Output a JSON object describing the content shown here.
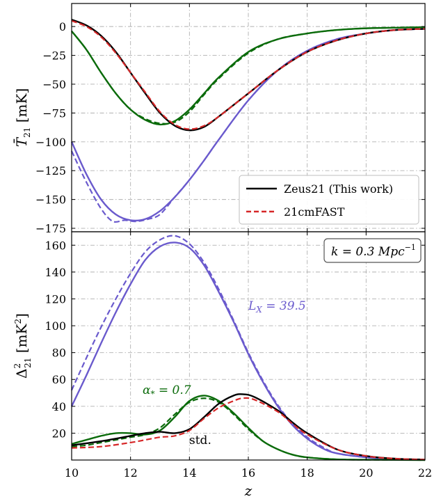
{
  "chart_data": [
    {
      "type": "line",
      "panel": "top",
      "ylabel": "T̄21 [mK]",
      "ylabel_main": "T̄",
      "ylabel_sub": "21",
      "ylabel_unit": " [mK]",
      "xlim": [
        10,
        22
      ],
      "ylim": [
        -178,
        20
      ],
      "x_ticks": [
        10,
        12,
        14,
        16,
        18,
        20,
        22
      ],
      "y_ticks": [
        0,
        -25,
        -50,
        -75,
        -100,
        -125,
        -150,
        -175
      ],
      "y_tick_labels": [
        "0",
        "−25",
        "−50",
        "−75",
        "−100",
        "−125",
        "−150",
        "−175"
      ],
      "grid": true,
      "legend_position": "lower-right",
      "legend": [
        {
          "label": "Zeus21 (This work)",
          "style": "solid",
          "color": "#000000"
        },
        {
          "label": "21cmFAST",
          "style": "dashed",
          "color": "#d62728"
        }
      ],
      "series": [
        {
          "name": "Zeus21 (This work)",
          "model": "std.",
          "style": "solid",
          "color": "#000000",
          "x": [
            10,
            10.5,
            11,
            11.5,
            12,
            12.5,
            13,
            13.5,
            14,
            14.5,
            15,
            16,
            17,
            18,
            19,
            20,
            21,
            22
          ],
          "y": [
            6,
            1,
            -8,
            -22,
            -40,
            -58,
            -75,
            -86,
            -90,
            -87,
            -78,
            -58,
            -38,
            -22,
            -12,
            -6,
            -3,
            -2
          ]
        },
        {
          "name": "21cmFAST",
          "model": "std.",
          "style": "dashed",
          "color": "#d62728",
          "x": [
            10,
            10.5,
            11,
            11.5,
            12,
            12.5,
            13,
            13.5,
            14,
            14.5,
            15,
            16,
            17,
            18,
            19,
            20,
            21,
            22
          ],
          "y": [
            5,
            0,
            -9,
            -23,
            -40,
            -57,
            -74,
            -85,
            -89,
            -86,
            -78,
            -58,
            -38,
            -22,
            -12,
            -6,
            -3,
            -2
          ]
        },
        {
          "model": "α* = 0.7",
          "style": "solid",
          "color": "#0b6b0b",
          "x": [
            10,
            10.5,
            11,
            11.5,
            12,
            12.5,
            13,
            13.5,
            14,
            14.5,
            15,
            16,
            17,
            18,
            19,
            20,
            21,
            22
          ],
          "y": [
            -4,
            -20,
            -40,
            -58,
            -72,
            -81,
            -85,
            -82,
            -72,
            -58,
            -44,
            -22,
            -11,
            -6,
            -3,
            -1.5,
            -1,
            -0.5
          ]
        },
        {
          "model": "α* = 0.7",
          "style": "dashed",
          "color": "#0b6b0b",
          "x": [
            10,
            10.5,
            11,
            11.5,
            12,
            12.5,
            13,
            13.5,
            14,
            14.5,
            15,
            16,
            17,
            18,
            19,
            20,
            21,
            22
          ],
          "y": [
            -4,
            -20,
            -40,
            -58,
            -72,
            -80,
            -84,
            -83,
            -74,
            -59,
            -45,
            -23,
            -11,
            -6,
            -3,
            -1.5,
            -1,
            -0.5
          ]
        },
        {
          "model": "LX = 39.5",
          "style": "solid",
          "color": "#6a5acd",
          "x": [
            10,
            10.5,
            11,
            11.5,
            12,
            12.5,
            13,
            13.5,
            14,
            14.5,
            15,
            16,
            17,
            18,
            19,
            20,
            21,
            22
          ],
          "y": [
            -100,
            -128,
            -150,
            -163,
            -168,
            -167,
            -160,
            -148,
            -133,
            -116,
            -98,
            -64,
            -38,
            -21,
            -11,
            -6,
            -3,
            -2
          ]
        },
        {
          "model": "LX = 39.5",
          "style": "dashed",
          "color": "#6a5acd",
          "x": [
            10,
            10.5,
            11,
            11.4,
            11.8,
            12.2,
            12.6,
            13,
            13.5,
            14,
            14.5,
            15,
            16,
            17,
            18,
            19,
            20,
            21,
            22
          ],
          "y": [
            -108,
            -135,
            -158,
            -169,
            -168,
            -169,
            -167,
            -163,
            -148,
            -133,
            -116,
            -98,
            -64,
            -38,
            -21,
            -11,
            -6,
            -3,
            -2
          ]
        }
      ]
    },
    {
      "type": "line",
      "panel": "bottom",
      "xlabel": "z",
      "ylabel": "Δ²21 [mK²]",
      "ylabel_main": "Δ",
      "ylabel_sup": "2",
      "ylabel_sub": "21",
      "ylabel_unit": " [mK",
      "ylabel_unit_sup": "2",
      "ylabel_close": "]",
      "xlim": [
        10,
        22
      ],
      "ylim": [
        0,
        170
      ],
      "x_ticks": [
        10,
        12,
        14,
        16,
        18,
        20,
        22
      ],
      "y_ticks": [
        20,
        40,
        60,
        80,
        100,
        120,
        140,
        160
      ],
      "grid": true,
      "annotations": {
        "k_box_prefix": "k = 0.3 Mpc",
        "k_box_sup": "−1",
        "lx_label_prefix": "L",
        "lx_label_sub": "X",
        "lx_label_suffix": " = 39.5",
        "alpha_label_prefix": "α",
        "alpha_label_sub": "*",
        "alpha_label_suffix": " = 0.7",
        "std_label": "std."
      },
      "series": [
        {
          "name": "Zeus21 (This work)",
          "model": "std.",
          "style": "solid",
          "color": "#000000",
          "x": [
            10,
            11,
            12,
            12.5,
            13,
            13.5,
            14,
            14.5,
            15,
            15.5,
            15.8,
            16.2,
            17,
            17.5,
            18,
            19,
            20,
            21,
            22
          ],
          "y": [
            11,
            14,
            18,
            20,
            21,
            20,
            23,
            32,
            42,
            48,
            49,
            47,
            37,
            28,
            20,
            8,
            3,
            1,
            0.3
          ]
        },
        {
          "name": "21cmFAST",
          "model": "std.",
          "style": "dashed",
          "color": "#d62728",
          "x": [
            10,
            11,
            12,
            12.5,
            13,
            13.5,
            14,
            14.5,
            15,
            15.5,
            15.8,
            16.2,
            17,
            17.5,
            18,
            19,
            20,
            21,
            22
          ],
          "y": [
            9,
            10,
            13,
            15,
            17,
            18,
            22,
            31,
            39,
            44,
            46,
            45,
            36,
            27,
            19,
            8,
            3,
            1,
            0.3
          ]
        },
        {
          "model": "α* = 0.7",
          "style": "solid",
          "color": "#0b6b0b",
          "x": [
            10,
            10.5,
            11,
            11.5,
            12,
            12.5,
            13,
            13.5,
            14,
            14.5,
            15,
            15.5,
            16,
            16.5,
            17,
            17.5,
            18,
            19,
            20,
            21,
            22
          ],
          "y": [
            12,
            15,
            18,
            20,
            20,
            19,
            22,
            32,
            44,
            48,
            44,
            35,
            24,
            14,
            8,
            4,
            2,
            0.5,
            0.2,
            0.1,
            0
          ]
        },
        {
          "model": "α* = 0.7",
          "style": "dashed",
          "color": "#0b6b0b",
          "x": [
            10,
            10.5,
            11,
            11.5,
            12,
            12.5,
            13,
            13.5,
            14,
            14.5,
            15,
            15.5,
            16,
            16.5,
            17,
            17.5,
            18,
            19,
            20,
            21,
            22
          ],
          "y": [
            10,
            11,
            13,
            15,
            17,
            19,
            24,
            34,
            43,
            46,
            43,
            34,
            23,
            14,
            8,
            4,
            2,
            0.5,
            0.2,
            0.1,
            0
          ]
        },
        {
          "model": "LX = 39.5",
          "style": "solid",
          "color": "#6a5acd",
          "x": [
            10,
            10.5,
            11,
            11.5,
            12,
            12.5,
            13,
            13.5,
            14,
            14.5,
            15,
            15.5,
            16,
            16.5,
            17,
            17.5,
            18,
            18.5,
            19,
            20,
            21,
            22
          ],
          "y": [
            40,
            63,
            87,
            110,
            131,
            149,
            159,
            162,
            158,
            145,
            125,
            103,
            79,
            58,
            40,
            26,
            16,
            9,
            5,
            2,
            0.5,
            0.1
          ]
        },
        {
          "model": "LX = 39.5",
          "style": "dashed",
          "color": "#6a5acd",
          "x": [
            10,
            10.5,
            11,
            11.5,
            12,
            12.5,
            13,
            13.5,
            14,
            14.5,
            15,
            15.5,
            16,
            16.5,
            17,
            17.5,
            18,
            18.5,
            19,
            20,
            21,
            22
          ],
          "y": [
            52,
            76,
            99,
            120,
            139,
            155,
            164,
            167,
            161,
            147,
            127,
            104,
            80,
            59,
            41,
            27,
            17,
            10,
            5,
            2,
            0.5,
            0.1
          ]
        }
      ]
    }
  ]
}
